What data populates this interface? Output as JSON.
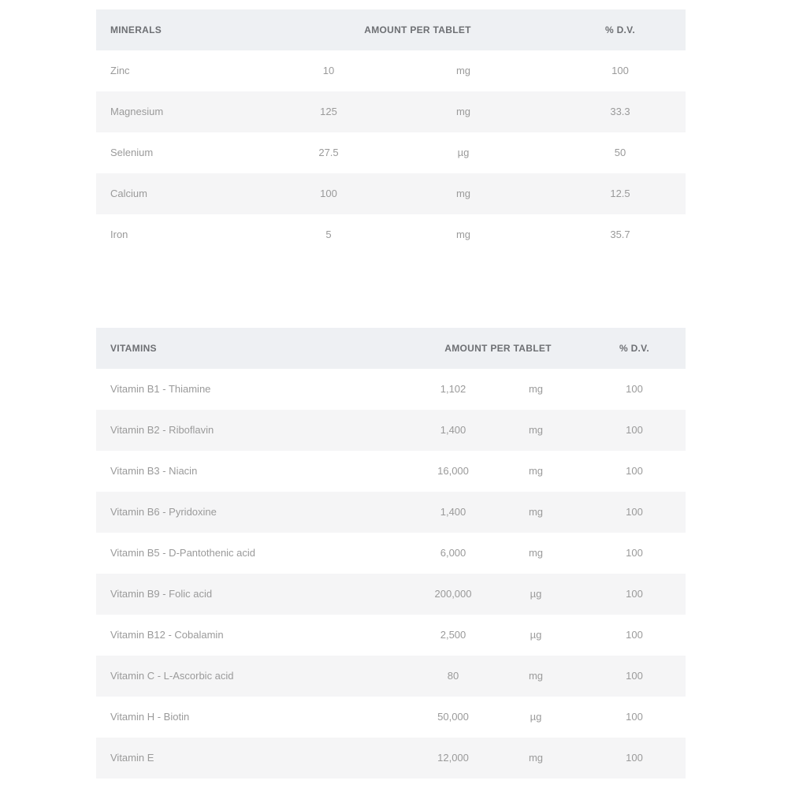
{
  "minerals": {
    "headers": {
      "name": "MINERALS",
      "amount": "AMOUNT PER TABLET",
      "dv": "% D.V."
    },
    "rows": [
      {
        "name": "Zinc",
        "amount": "10",
        "unit": "mg",
        "dv": "100"
      },
      {
        "name": "Magnesium",
        "amount": "125",
        "unit": "mg",
        "dv": "33.3"
      },
      {
        "name": "Selenium",
        "amount": "27.5",
        "unit": "µg",
        "dv": "50"
      },
      {
        "name": "Calcium",
        "amount": "100",
        "unit": "mg",
        "dv": "12.5"
      },
      {
        "name": "Iron",
        "amount": "5",
        "unit": "mg",
        "dv": "35.7"
      }
    ]
  },
  "vitamins": {
    "headers": {
      "name": "VITAMINS",
      "amount": "AMOUNT PER TABLET",
      "dv": "% D.V."
    },
    "rows": [
      {
        "name": "Vitamin B1 - Thiamine",
        "amount": "1,102",
        "unit": "mg",
        "dv": "100"
      },
      {
        "name": "Vitamin B2 - Riboflavin",
        "amount": "1,400",
        "unit": "mg",
        "dv": "100"
      },
      {
        "name": "Vitamin B3 - Niacin",
        "amount": "16,000",
        "unit": "mg",
        "dv": "100"
      },
      {
        "name": "Vitamin B6 - Pyridoxine",
        "amount": "1,400",
        "unit": "mg",
        "dv": "100"
      },
      {
        "name": "Vitamin B5 - D-Pantothenic acid",
        "amount": "6,000",
        "unit": "mg",
        "dv": "100"
      },
      {
        "name": "Vitamin B9 - Folic acid",
        "amount": "200,000",
        "unit": "µg",
        "dv": "100"
      },
      {
        "name": "Vitamin B12 - Cobalamin",
        "amount": "2,500",
        "unit": "µg",
        "dv": "100"
      },
      {
        "name": "Vitamin C - L-Ascorbic acid",
        "amount": "80",
        "unit": "mg",
        "dv": "100"
      },
      {
        "name": "Vitamin H - Biotin",
        "amount": "50,000",
        "unit": "µg",
        "dv": "100"
      },
      {
        "name": "Vitamin E",
        "amount": "12,000",
        "unit": "mg",
        "dv": "100"
      }
    ]
  }
}
